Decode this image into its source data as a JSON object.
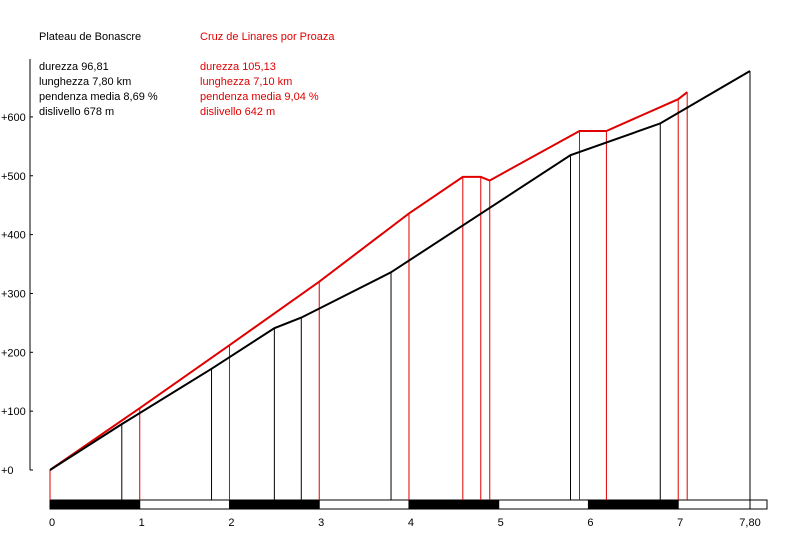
{
  "colors": {
    "series_a": "#000000",
    "series_b": "#e00000",
    "background": "#ffffff"
  },
  "chart_data": {
    "type": "line",
    "title": "",
    "xlabel": "",
    "ylabel": "",
    "xlim": [
      0,
      7.8
    ],
    "ylim": [
      0,
      678
    ],
    "grid": false,
    "y_ticks": [
      "+0",
      "+100",
      "+200",
      "+300",
      "+400",
      "+500",
      "+600"
    ],
    "y_tick_values": [
      0,
      100,
      200,
      300,
      400,
      500,
      600
    ],
    "x_ticks": [
      "0",
      "1",
      "2",
      "3",
      "4",
      "5",
      "6",
      "7",
      "7,80"
    ],
    "x_tick_values": [
      0,
      1,
      2,
      3,
      4,
      5,
      6,
      7,
      7.8
    ],
    "series": [
      {
        "name": "Plateau de Bonascre",
        "info": [
          "durezza 96,81",
          "lunghezza 7,80 km",
          "pendenza media 8,69 %",
          "dislivello 678 m"
        ],
        "x": [
          0,
          0.8,
          1.8,
          2.5,
          2.8,
          3.8,
          5.8,
          6.8,
          7.8
        ],
        "y": [
          0,
          78,
          172,
          241,
          259,
          336,
          535,
          589,
          678
        ]
      },
      {
        "name": "Cruz de Linares por Proaza",
        "info": [
          "durezza 105,13",
          "lunghezza 7,10 km",
          "pendenza media 9,04 %",
          "dislivello 642 m"
        ],
        "x": [
          0,
          1,
          2,
          3,
          4,
          4.6,
          4.8,
          4.9,
          5.9,
          6.2,
          7,
          7.1
        ],
        "y": [
          0,
          105,
          212,
          320,
          436,
          498,
          498,
          492,
          576,
          576,
          630,
          642
        ]
      }
    ]
  }
}
